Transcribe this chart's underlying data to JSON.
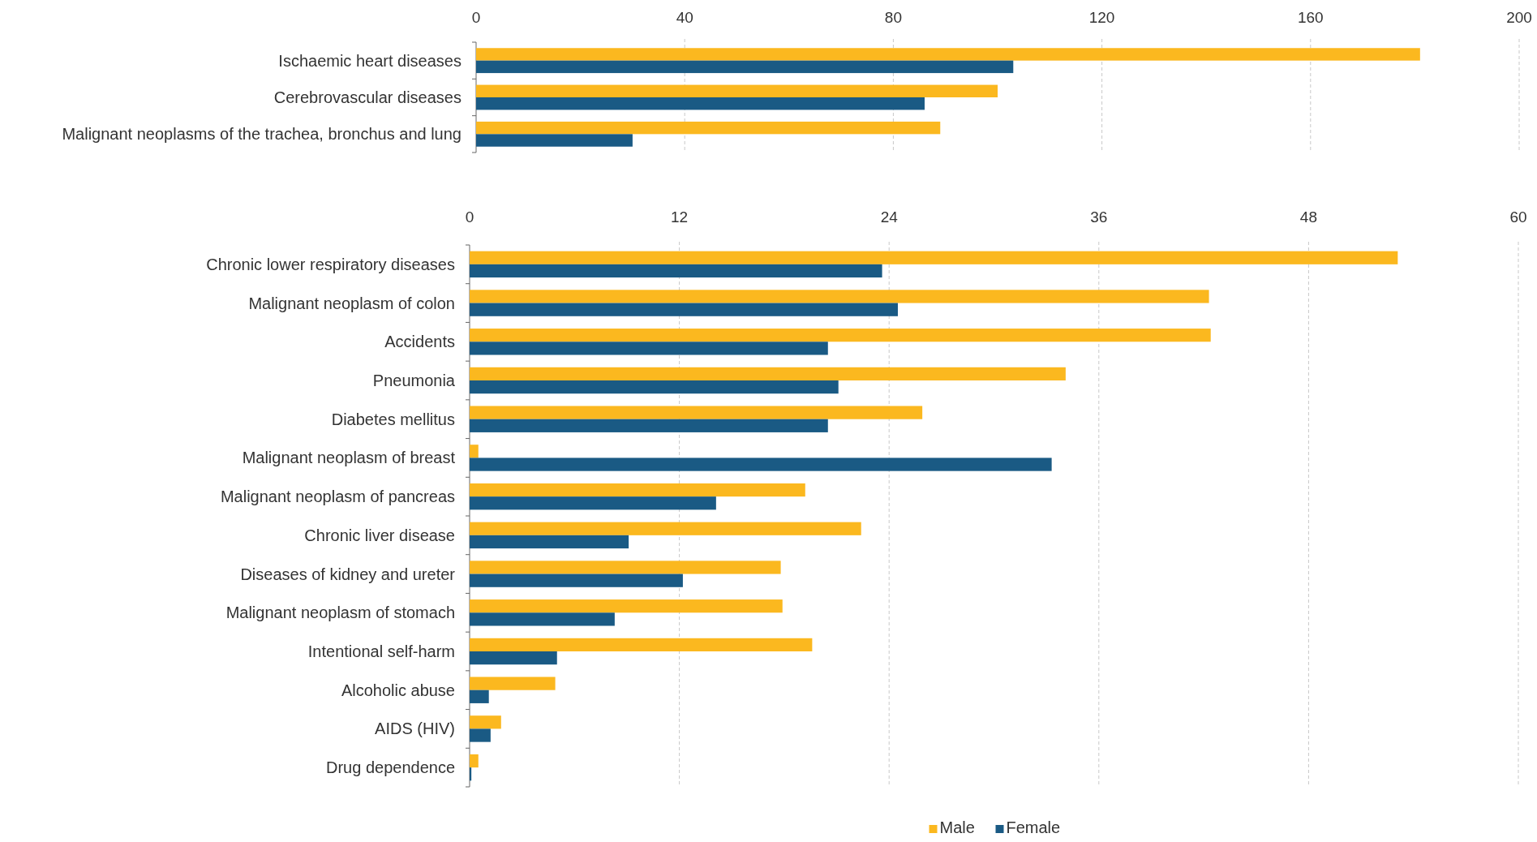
{
  "chart_data": [
    {
      "type": "bar",
      "orientation": "horizontal",
      "categories": [
        "Ischaemic heart diseases",
        "Cerebrovascular diseases",
        "Malignant neoplasms of the trachea, bronchus and lung"
      ],
      "xlim": [
        0,
        200
      ],
      "xticks": [
        0,
        40,
        80,
        120,
        160,
        200
      ],
      "grid": "x",
      "series": [
        {
          "color": "#fbb81f",
          "values": [
            181,
            100,
            89
          ]
        },
        {
          "color": "#1a5a84",
          "values": [
            103,
            86,
            30
          ]
        }
      ]
    },
    {
      "type": "bar",
      "orientation": "horizontal",
      "categories": [
        "Chronic lower respiratory diseases",
        "Malignant neoplasm of colon",
        "Accidents",
        "Pneumonia",
        "Diabetes mellitus",
        "Malignant neoplasm of breast",
        "Malignant neoplasm of pancreas",
        "Chronic liver disease",
        "Diseases of kidney and ureter",
        "Malignant neoplasm of stomach",
        "Intentional self-harm",
        "Alcoholic abuse",
        "AIDS (HIV)",
        "Drug dependence"
      ],
      "xlim": [
        0,
        60
      ],
      "xticks": [
        0,
        12,
        24,
        36,
        48,
        60
      ],
      "grid": "x",
      "legend": "bottom",
      "series": [
        {
          "name": "Male",
          "color": "#fbb81f",
          "values": [
            53.1,
            42.3,
            42.4,
            34.1,
            25.9,
            0.5,
            19.2,
            22.4,
            17.8,
            17.9,
            19.6,
            4.9,
            1.8,
            0.5
          ]
        },
        {
          "name": "Female",
          "color": "#1a5a84",
          "values": [
            23.6,
            24.5,
            20.5,
            21.1,
            20.5,
            33.3,
            14.1,
            9.1,
            12.2,
            8.3,
            5.0,
            1.1,
            1.2,
            0.1
          ]
        }
      ]
    }
  ]
}
